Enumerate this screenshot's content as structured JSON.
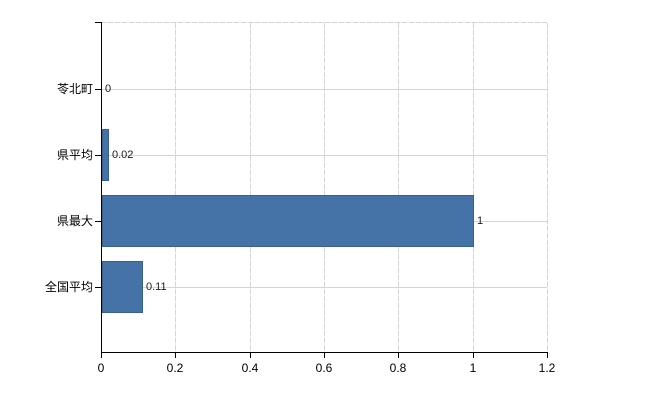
{
  "chart_data": {
    "type": "bar",
    "orientation": "horizontal",
    "title": "",
    "categories": [
      "苓北町",
      "県平均",
      "県最大",
      "全国平均"
    ],
    "values": [
      0,
      0.02,
      1,
      0.11
    ],
    "value_labels": [
      "0",
      "0.02",
      "1",
      "0.11"
    ],
    "x_ticks": [
      0,
      0.2,
      0.4,
      0.6,
      0.8,
      1,
      1.2
    ],
    "x_tick_labels": [
      "0",
      "0.2",
      "0.4",
      "0.6",
      "0.8",
      "1",
      "1.2"
    ],
    "xlim": [
      0,
      1.2
    ],
    "grid": "both",
    "legend": "none",
    "colors": {
      "bar": "#4572a7",
      "bar_border": "#38608f",
      "gridline": "#d2d6d4",
      "axis": "#000000",
      "text": "#000000",
      "background": "#ffffff"
    }
  }
}
